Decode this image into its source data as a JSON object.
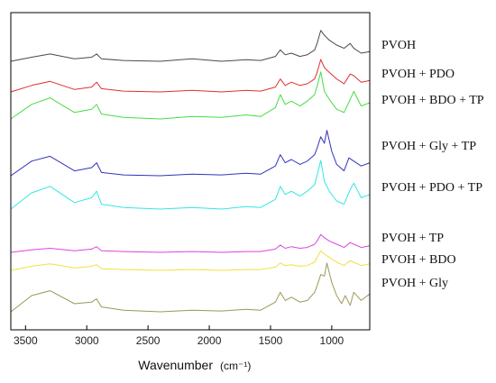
{
  "chart_data": {
    "type": "line",
    "title": "",
    "xlabel": "Wavenumber",
    "xlabel_unit": "(cm⁻¹)",
    "ylabel": "",
    "xlim": [
      3620,
      690
    ],
    "x_ticks": [
      3500,
      3000,
      2500,
      2000,
      1500,
      1000
    ],
    "y_axis_values_shown": false,
    "grid": false,
    "legend_placement": "right, beside each trace",
    "series": [
      {
        "name": "PVOH",
        "color": "#4a4a4a",
        "x": [
          3620,
          3450,
          3300,
          3100,
          2960,
          2920,
          2880,
          2700,
          2400,
          2140,
          1900,
          1700,
          1580,
          1460,
          1420,
          1380,
          1330,
          1260,
          1200,
          1140,
          1120,
          1090,
          1060,
          1020,
          960,
          900,
          850,
          820,
          760,
          690
        ],
        "y": [
          0,
          5,
          9,
          3,
          5,
          9,
          3,
          1,
          0,
          3,
          0,
          2,
          1,
          6,
          14,
          8,
          10,
          6,
          8,
          14,
          22,
          38,
          32,
          26,
          20,
          16,
          22,
          16,
          10,
          12
        ]
      },
      {
        "name": "PVOH + PDO",
        "color": "#e03030",
        "x": [
          3620,
          3450,
          3300,
          3100,
          2960,
          2920,
          2880,
          2700,
          2400,
          2140,
          1900,
          1700,
          1580,
          1460,
          1420,
          1380,
          1330,
          1260,
          1200,
          1140,
          1120,
          1090,
          1060,
          1020,
          960,
          900,
          850,
          820,
          760,
          690
        ],
        "y": [
          0,
          8,
          13,
          3,
          6,
          12,
          4,
          1,
          0,
          2,
          0,
          2,
          1,
          6,
          16,
          8,
          12,
          8,
          10,
          16,
          24,
          40,
          30,
          24,
          16,
          10,
          22,
          20,
          12,
          14
        ]
      },
      {
        "name": "PVOH + BDO + TP",
        "color": "#44dd44",
        "x": [
          3620,
          3450,
          3300,
          3100,
          2960,
          2920,
          2880,
          2700,
          2400,
          2140,
          1900,
          1700,
          1580,
          1460,
          1420,
          1380,
          1330,
          1260,
          1200,
          1140,
          1120,
          1090,
          1060,
          1020,
          960,
          900,
          850,
          820,
          760,
          690
        ],
        "y": [
          0,
          18,
          26,
          8,
          12,
          18,
          6,
          2,
          0,
          3,
          2,
          5,
          3,
          14,
          30,
          18,
          22,
          16,
          22,
          30,
          40,
          58,
          34,
          24,
          12,
          8,
          24,
          34,
          16,
          20
        ]
      },
      {
        "name": "PVOH + Gly + TP",
        "color": "#3333bb",
        "x": [
          3620,
          3450,
          3300,
          3100,
          2960,
          2920,
          2880,
          2700,
          2400,
          2140,
          1900,
          1700,
          1580,
          1460,
          1420,
          1380,
          1330,
          1260,
          1200,
          1140,
          1120,
          1090,
          1060,
          1040,
          1000,
          960,
          900,
          860,
          820,
          760,
          690
        ],
        "y": [
          0,
          18,
          24,
          6,
          10,
          16,
          4,
          1,
          0,
          2,
          1,
          3,
          2,
          12,
          26,
          16,
          20,
          14,
          18,
          26,
          34,
          48,
          40,
          56,
          30,
          14,
          6,
          22,
          18,
          12,
          16
        ]
      },
      {
        "name": "PVOH + PDO + TP",
        "color": "#33e6e6",
        "x": [
          3620,
          3450,
          3300,
          3100,
          2960,
          2920,
          2880,
          2700,
          2400,
          2140,
          1900,
          1700,
          1580,
          1460,
          1420,
          1380,
          1330,
          1260,
          1200,
          1140,
          1120,
          1090,
          1060,
          1020,
          960,
          900,
          850,
          820,
          760,
          690
        ],
        "y": [
          0,
          20,
          28,
          8,
          14,
          22,
          6,
          2,
          0,
          2,
          0,
          3,
          2,
          12,
          28,
          18,
          22,
          16,
          22,
          30,
          42,
          60,
          34,
          22,
          10,
          6,
          24,
          32,
          14,
          18
        ]
      },
      {
        "name": "PVOH + TP",
        "color": "#dd44dd",
        "x": [
          3620,
          3450,
          3300,
          3100,
          2960,
          2920,
          2880,
          2700,
          2400,
          2140,
          1900,
          1700,
          1580,
          1460,
          1420,
          1380,
          1330,
          1260,
          1200,
          1140,
          1120,
          1090,
          1060,
          1020,
          960,
          900,
          850,
          820,
          760,
          690
        ],
        "y": [
          0,
          3,
          5,
          2,
          4,
          7,
          2,
          1,
          0,
          1,
          0,
          1,
          1,
          4,
          9,
          5,
          7,
          5,
          6,
          10,
          14,
          22,
          18,
          14,
          10,
          6,
          12,
          10,
          6,
          8
        ]
      },
      {
        "name": "PVOH + BDO",
        "color": "#f2e040",
        "x": [
          3620,
          3450,
          3300,
          3100,
          2960,
          2920,
          2880,
          2700,
          2400,
          2140,
          1900,
          1700,
          1580,
          1460,
          1420,
          1380,
          1330,
          1260,
          1200,
          1140,
          1120,
          1090,
          1060,
          1020,
          960,
          900,
          850,
          820,
          760,
          690
        ],
        "y": [
          0,
          5,
          8,
          3,
          5,
          7,
          2,
          1,
          0,
          1,
          0,
          1,
          1,
          4,
          9,
          6,
          7,
          5,
          6,
          10,
          16,
          24,
          20,
          16,
          10,
          6,
          12,
          10,
          6,
          8
        ]
      },
      {
        "name": "PVOH + Gly",
        "color": "#999955",
        "x": [
          3620,
          3450,
          3300,
          3100,
          2960,
          2920,
          2880,
          2700,
          2400,
          2140,
          1900,
          1700,
          1580,
          1460,
          1420,
          1380,
          1330,
          1260,
          1200,
          1140,
          1120,
          1090,
          1060,
          1040,
          1000,
          960,
          920,
          890,
          850,
          820,
          760,
          690
        ],
        "y": [
          0,
          20,
          26,
          10,
          12,
          16,
          6,
          2,
          0,
          2,
          1,
          3,
          2,
          12,
          24,
          14,
          18,
          12,
          14,
          24,
          32,
          46,
          44,
          60,
          36,
          20,
          10,
          20,
          8,
          24,
          14,
          22
        ]
      }
    ]
  }
}
